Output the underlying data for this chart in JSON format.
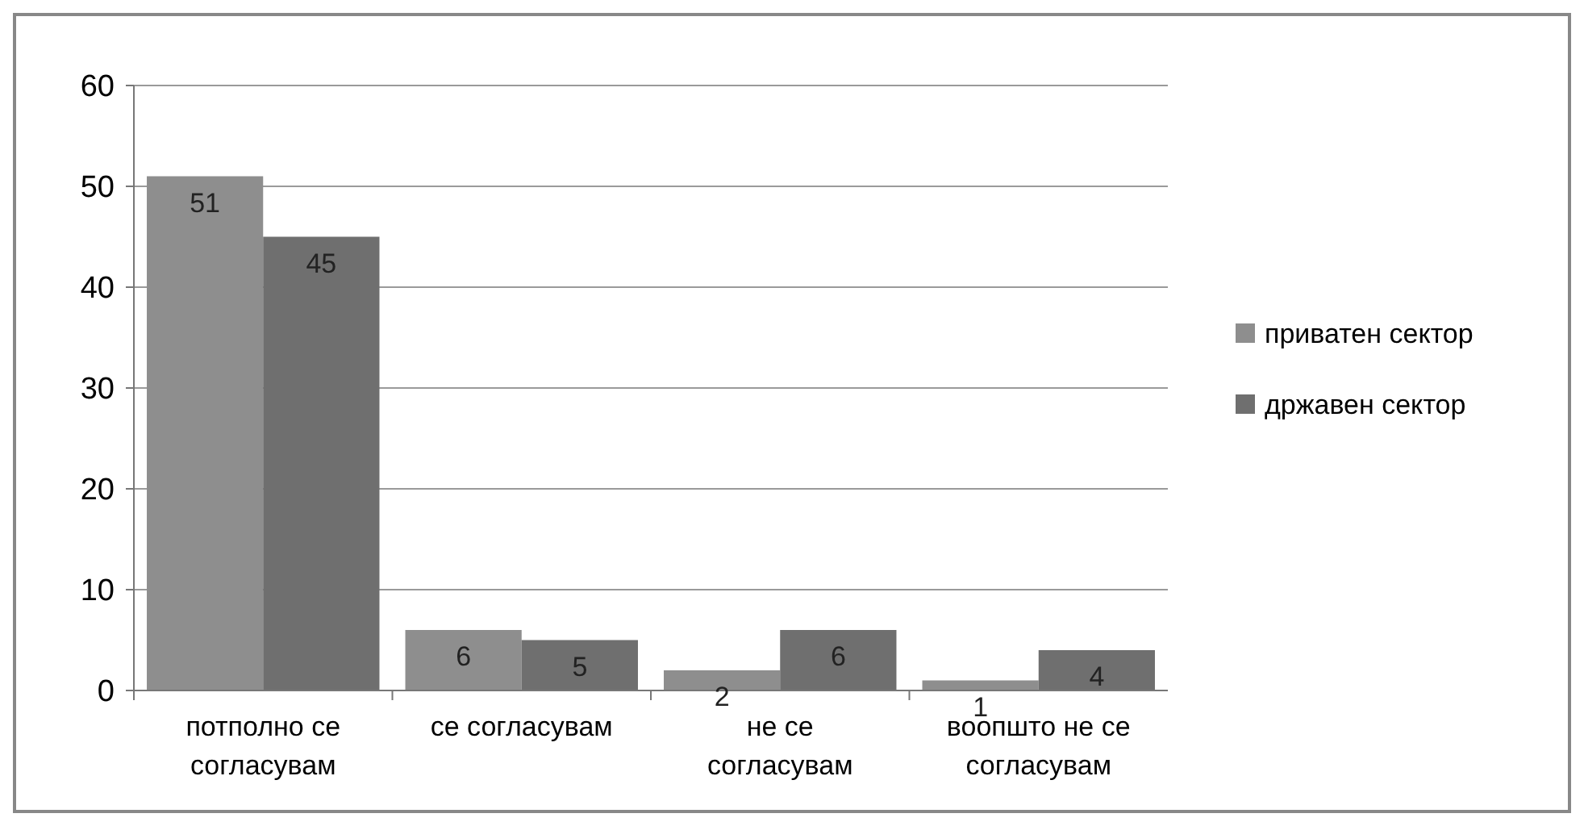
{
  "chart_data": {
    "type": "bar",
    "categories": [
      "потполно се согласувам",
      "се согласувам",
      "не се согласувам",
      "воопшто не се согласувам"
    ],
    "series": [
      {
        "name": "приватен сектор",
        "color": "#8e8e8e",
        "values": [
          51,
          6,
          2,
          1
        ]
      },
      {
        "name": "државен сектор",
        "color": "#6f6f6f",
        "values": [
          45,
          5,
          6,
          4
        ]
      }
    ],
    "ylim": [
      0,
      60
    ],
    "yticks": [
      0,
      10,
      20,
      30,
      40,
      50,
      60
    ],
    "grid": "y",
    "legend": "right",
    "data_labels": true
  }
}
